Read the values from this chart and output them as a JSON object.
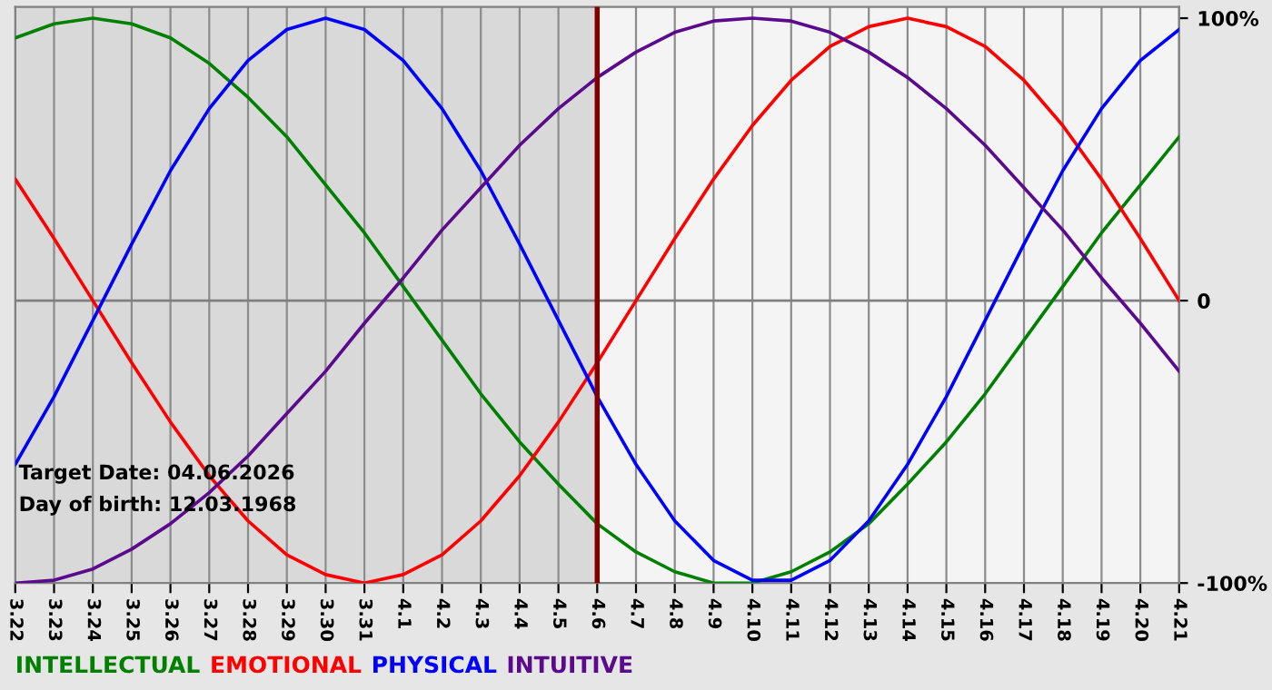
{
  "chart_data": {
    "type": "line",
    "categories": [
      "3.22",
      "3.23",
      "3.24",
      "3.25",
      "3.26",
      "3.27",
      "3.28",
      "3.29",
      "3.30",
      "3.31",
      "4.1",
      "4.2",
      "4.3",
      "4.4",
      "4.5",
      "4.6",
      "4.7",
      "4.8",
      "4.9",
      "4.10",
      "4.11",
      "4.12",
      "4.13",
      "4.14",
      "4.15",
      "4.16",
      "4.17",
      "4.18",
      "4.19",
      "4.20",
      "4.21"
    ],
    "series": [
      {
        "name": "INTELLECTUAL",
        "color": "#008000",
        "values": [
          93,
          98,
          100,
          98,
          93,
          84,
          72,
          58,
          41,
          24,
          5,
          -14,
          -33,
          -50,
          -65,
          -79,
          -89,
          -96,
          -100,
          -100,
          -96,
          -89,
          -79,
          -65,
          -50,
          -33,
          -14,
          5,
          24,
          41,
          58
        ]
      },
      {
        "name": "EMOTIONAL",
        "color": "#ff0000",
        "values": [
          43,
          22,
          0,
          -22,
          -43,
          -62,
          -78,
          -90,
          -97,
          -100,
          -97,
          -90,
          -78,
          -62,
          -43,
          -22,
          0,
          22,
          43,
          62,
          78,
          90,
          97,
          100,
          97,
          90,
          78,
          62,
          43,
          22,
          0
        ]
      },
      {
        "name": "PHYSICAL",
        "color": "#0000ff",
        "values": [
          -58,
          -34,
          -7,
          20,
          46,
          68,
          85,
          96,
          100,
          96,
          85,
          68,
          46,
          20,
          -7,
          -34,
          -58,
          -78,
          -92,
          -99,
          -99,
          -92,
          -78,
          -58,
          -34,
          -7,
          20,
          46,
          68,
          85,
          96
        ]
      },
      {
        "name": "INTUITIVE",
        "color": "#5a0a8c",
        "values": [
          -100,
          -99,
          -95,
          -88,
          -79,
          -68,
          -55,
          -40,
          -25,
          -8,
          8,
          25,
          40,
          55,
          68,
          79,
          88,
          95,
          99,
          100,
          99,
          95,
          88,
          79,
          68,
          55,
          40,
          25,
          8,
          -8,
          -25
        ]
      }
    ],
    "ylim": [
      -100,
      104
    ],
    "yticks": [
      {
        "value": 100,
        "label": "100%"
      },
      0,
      {
        "value": -100,
        "label": "-100%"
      }
    ],
    "grid": "x",
    "legend": "bottom left",
    "marker": "none",
    "line_style": "solid",
    "ref_lines": [
      {
        "axis": "y",
        "value": 0,
        "color": "#808080"
      },
      {
        "axis": "x",
        "value": "4.6",
        "color": "#800000"
      }
    ],
    "bands": [
      {
        "axis": "x",
        "from": "3.22",
        "to": "4.6",
        "color": "#d9d9d9"
      }
    ],
    "annotations": [
      "Target Date: 04.06.2026",
      "Day of birth: 12.03.1968"
    ]
  }
}
